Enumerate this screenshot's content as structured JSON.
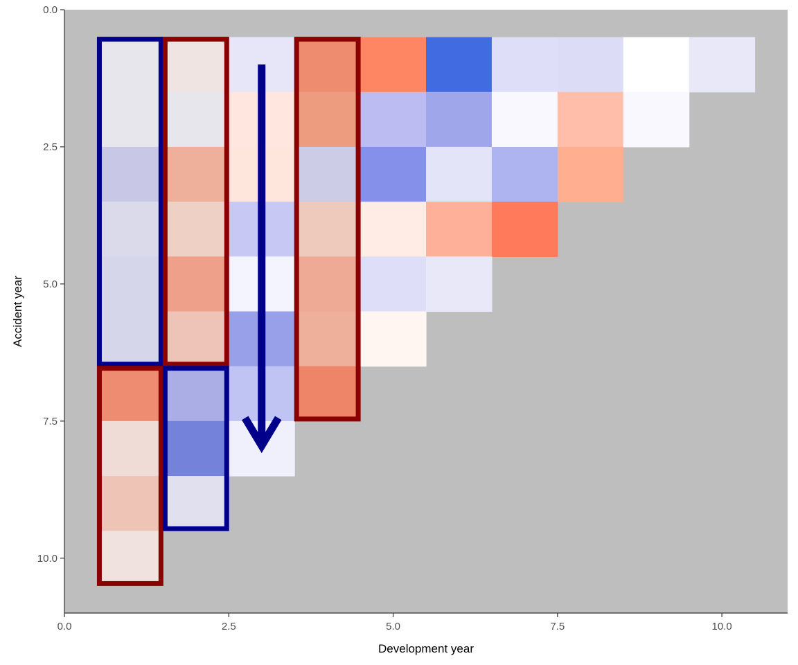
{
  "chart_data": {
    "type": "heatmap",
    "title": "",
    "xlabel": "Development year",
    "ylabel": "Accident year",
    "xlim": [
      0,
      11
    ],
    "ylim": [
      11,
      0
    ],
    "y_reversed": true,
    "x_ticks": [
      "0.0",
      "2.5",
      "5.0",
      "7.5",
      "10.0"
    ],
    "y_ticks": [
      "0.0",
      "2.5",
      "5.0",
      "7.5",
      "10.0"
    ],
    "x_tick_values": [
      0,
      2.5,
      5,
      7.5,
      10
    ],
    "y_tick_values": [
      0,
      2.5,
      5,
      7.5,
      10
    ],
    "panel_background": "#bebebe",
    "grid": false,
    "cells": [
      {
        "x": 1,
        "y": 1,
        "color": "#e6e6ec"
      },
      {
        "x": 2,
        "y": 1,
        "color": "#f0e4e2"
      },
      {
        "x": 3,
        "y": 1,
        "color": "#e6e6f8"
      },
      {
        "x": 4,
        "y": 1,
        "color": "#ee8c70"
      },
      {
        "x": 5,
        "y": 1,
        "color": "#ff8662"
      },
      {
        "x": 6,
        "y": 1,
        "color": "#416be1"
      },
      {
        "x": 7,
        "y": 1,
        "color": "#dedef8"
      },
      {
        "x": 8,
        "y": 1,
        "color": "#dcdcf6"
      },
      {
        "x": 9,
        "y": 1,
        "color": "#ffffff"
      },
      {
        "x": 10,
        "y": 1,
        "color": "#e8e8f8"
      },
      {
        "x": 1,
        "y": 2,
        "color": "#e6e6ec"
      },
      {
        "x": 2,
        "y": 2,
        "color": "#e6e6ec"
      },
      {
        "x": 3,
        "y": 2,
        "color": "#ffe6de"
      },
      {
        "x": 4,
        "y": 2,
        "color": "#ee9c80"
      },
      {
        "x": 5,
        "y": 2,
        "color": "#bcbcf2"
      },
      {
        "x": 6,
        "y": 2,
        "color": "#a0a6ea"
      },
      {
        "x": 7,
        "y": 2,
        "color": "#f8f8fe"
      },
      {
        "x": 8,
        "y": 2,
        "color": "#febeaa"
      },
      {
        "x": 9,
        "y": 2,
        "color": "#f8f8fe"
      },
      {
        "x": 1,
        "y": 3,
        "color": "#c8c8e6"
      },
      {
        "x": 2,
        "y": 3,
        "color": "#eeb09a"
      },
      {
        "x": 3,
        "y": 3,
        "color": "#ffe6dc"
      },
      {
        "x": 4,
        "y": 3,
        "color": "#cccce6"
      },
      {
        "x": 5,
        "y": 3,
        "color": "#8490ea"
      },
      {
        "x": 6,
        "y": 3,
        "color": "#e4e4f8"
      },
      {
        "x": 7,
        "y": 3,
        "color": "#aeb4f0"
      },
      {
        "x": 8,
        "y": 3,
        "color": "#ffae90"
      },
      {
        "x": 1,
        "y": 4,
        "color": "#dadaea"
      },
      {
        "x": 2,
        "y": 4,
        "color": "#eed0c4"
      },
      {
        "x": 3,
        "y": 4,
        "color": "#c8c8f4"
      },
      {
        "x": 4,
        "y": 4,
        "color": "#eecabc"
      },
      {
        "x": 5,
        "y": 4,
        "color": "#ffece4"
      },
      {
        "x": 6,
        "y": 4,
        "color": "#ffb098"
      },
      {
        "x": 7,
        "y": 4,
        "color": "#ff7a5a"
      },
      {
        "x": 1,
        "y": 5,
        "color": "#d6d6ea"
      },
      {
        "x": 2,
        "y": 5,
        "color": "#eea08a"
      },
      {
        "x": 3,
        "y": 5,
        "color": "#f4f4fe"
      },
      {
        "x": 4,
        "y": 5,
        "color": "#eeaa94"
      },
      {
        "x": 5,
        "y": 5,
        "color": "#dedef8"
      },
      {
        "x": 6,
        "y": 5,
        "color": "#e8e8f8"
      },
      {
        "x": 1,
        "y": 6,
        "color": "#d6d6ea"
      },
      {
        "x": 2,
        "y": 6,
        "color": "#eec4b8"
      },
      {
        "x": 3,
        "y": 6,
        "color": "#98a0ea"
      },
      {
        "x": 4,
        "y": 6,
        "color": "#eeb09a"
      },
      {
        "x": 5,
        "y": 6,
        "color": "#fff6f2"
      },
      {
        "x": 1,
        "y": 7,
        "color": "#ee8c72"
      },
      {
        "x": 2,
        "y": 7,
        "color": "#aaaee4"
      },
      {
        "x": 3,
        "y": 7,
        "color": "#c0c4f2"
      },
      {
        "x": 4,
        "y": 7,
        "color": "#ee8468"
      },
      {
        "x": 1,
        "y": 8,
        "color": "#f0dcd6"
      },
      {
        "x": 2,
        "y": 8,
        "color": "#7482d9"
      },
      {
        "x": 3,
        "y": 8,
        "color": "#f0f0fc"
      },
      {
        "x": 1,
        "y": 9,
        "color": "#eec4b6"
      },
      {
        "x": 2,
        "y": 9,
        "color": "#e0e0ee"
      },
      {
        "x": 1,
        "y": 10,
        "color": "#f0e2de"
      }
    ],
    "highlight_boxes": [
      {
        "x_range": [
          0.5,
          1.5
        ],
        "y_range": [
          0.5,
          6.5
        ],
        "color": "#00008b"
      },
      {
        "x_range": [
          1.5,
          2.5
        ],
        "y_range": [
          0.5,
          6.5
        ],
        "color": "#8b0000"
      },
      {
        "x_range": [
          3.5,
          4.5
        ],
        "y_range": [
          0.5,
          7.5
        ],
        "color": "#8b0000"
      },
      {
        "x_range": [
          0.5,
          1.5
        ],
        "y_range": [
          6.5,
          10.5
        ],
        "color": "#8b0000"
      },
      {
        "x_range": [
          1.5,
          2.5
        ],
        "y_range": [
          6.5,
          9.5
        ],
        "color": "#00008b"
      }
    ],
    "arrow": {
      "x": 3,
      "y_from": 1,
      "y_to": 8,
      "color": "#00008b"
    }
  }
}
